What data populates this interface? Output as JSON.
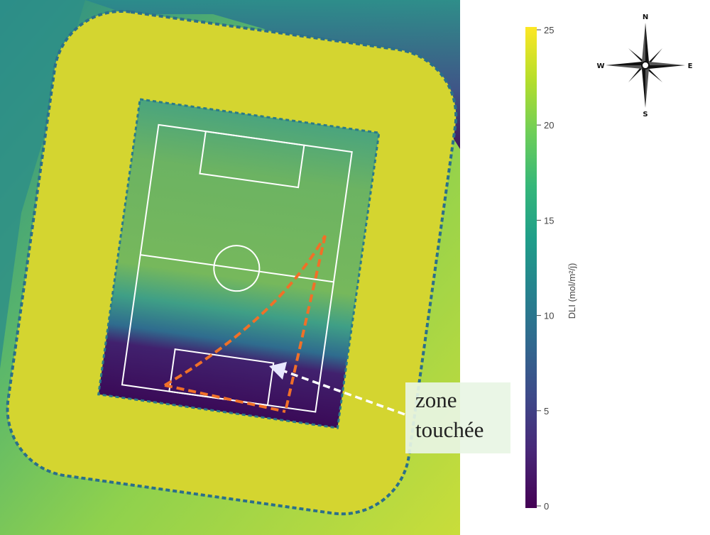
{
  "map": {
    "annotation": {
      "line1": "zone",
      "line2": "touchée"
    }
  },
  "legend": {
    "title": "DLI (mol/m²/j)",
    "ticks": [
      "25",
      "20",
      "15",
      "10",
      "5",
      "0"
    ],
    "range": [
      0,
      25
    ],
    "colormap": "viridis",
    "colors": [
      "#fde725",
      "#b5de2b",
      "#6ece58",
      "#35b779",
      "#1f9e89",
      "#26828e",
      "#31688e",
      "#3e4989",
      "#482878",
      "#440154"
    ]
  },
  "compass": {
    "north": "N",
    "south": "S",
    "east": "E",
    "west": "W"
  },
  "colors": {
    "stands": "#d4d530",
    "pitch_lines": "#ffffff",
    "affected_zone_outline": "#f07028",
    "arrow": "#ffffff"
  }
}
